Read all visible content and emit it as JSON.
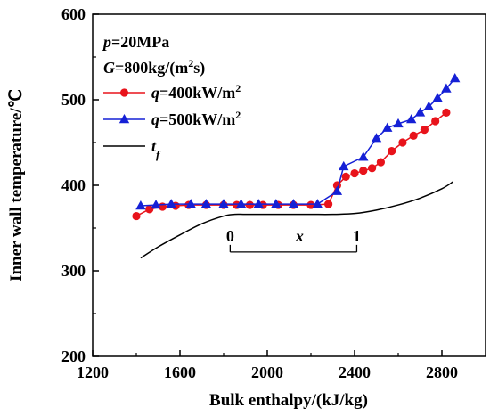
{
  "chart_data": {
    "type": "line",
    "xlabel": "Bulk enthalpy/(kJ/kg)",
    "ylabel": "Inner wall temperature/℃",
    "xlim": [
      1200,
      3000
    ],
    "ylim": [
      200,
      600
    ],
    "xticks": [
      1200,
      1600,
      2000,
      2400,
      2800
    ],
    "yticks": [
      200,
      300,
      400,
      500,
      600
    ],
    "grid": false,
    "legend_position": "top-left",
    "conditions": {
      "p_label": "p",
      "p_value": "=20MPa",
      "G_label": "G",
      "G_value": "=800kg/(m",
      "G_sup": "2",
      "G_tail": "s)"
    },
    "series": [
      {
        "label_var": "q",
        "label_text": "=400kW/m",
        "label_sup": "2",
        "color": "#e8131b",
        "marker": "circle",
        "x": [
          1400,
          1460,
          1520,
          1580,
          1640,
          1720,
          1800,
          1860,
          1920,
          1980,
          2050,
          2120,
          2200,
          2280,
          2320,
          2360,
          2400,
          2440,
          2480,
          2520,
          2570,
          2620,
          2670,
          2720,
          2770,
          2820
        ],
        "y": [
          364,
          372,
          375,
          376,
          377,
          377,
          377,
          377,
          377,
          377,
          377,
          377,
          377,
          378,
          400,
          410,
          414,
          417,
          420,
          427,
          440,
          450,
          458,
          465,
          475,
          485
        ]
      },
      {
        "label_var": "q",
        "label_text": "=500kW/m",
        "label_sup": "2",
        "color": "#1520d6",
        "marker": "triangle",
        "x": [
          1420,
          1490,
          1560,
          1650,
          1720,
          1800,
          1880,
          1960,
          2040,
          2120,
          2230,
          2320,
          2350,
          2440,
          2500,
          2550,
          2600,
          2660,
          2700,
          2740,
          2780,
          2820,
          2860
        ],
        "y": [
          376,
          377,
          378,
          378,
          378,
          378,
          378,
          378,
          378,
          378,
          378,
          393,
          422,
          433,
          455,
          467,
          472,
          477,
          485,
          492,
          502,
          513,
          525
        ]
      },
      {
        "label_var": "t",
        "label_sub": "f",
        "color": "#000000",
        "marker": "none",
        "x": [
          1420,
          1500,
          1600,
          1700,
          1800,
          1850,
          1900,
          2000,
          2100,
          2200,
          2300,
          2400,
          2500,
          2600,
          2700,
          2800,
          2850
        ],
        "y": [
          315,
          328,
          342,
          355,
          364,
          366,
          366,
          366,
          366,
          366,
          366,
          367,
          371,
          377,
          385,
          396,
          404
        ]
      }
    ],
    "annotation": {
      "start_label": "0",
      "var_label": "x",
      "end_label": "1",
      "x_start": 1830,
      "x_end": 2410,
      "y": 322
    }
  }
}
